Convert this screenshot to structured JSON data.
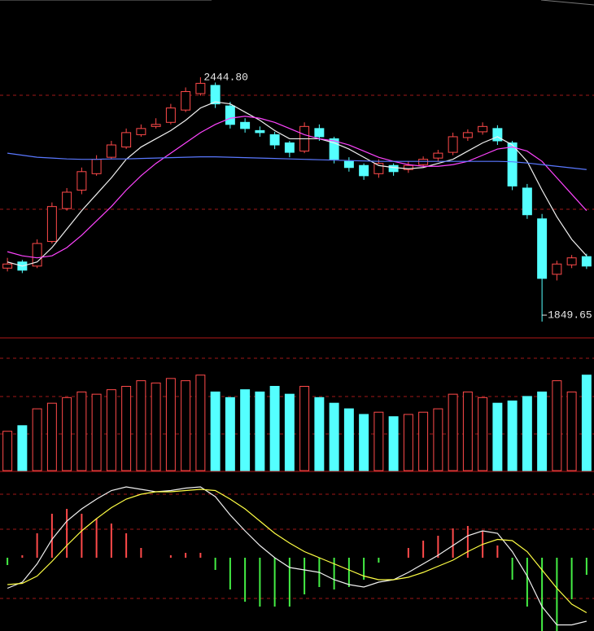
{
  "chart_data": [
    {
      "type": "candlestick",
      "ylim": [
        1820,
        2633
      ],
      "up_color": "#ff4a4a",
      "down_color": "#54ffff",
      "open": [
        1980,
        1995,
        1985,
        2045,
        2125,
        2170,
        2210,
        2250,
        2275,
        2305,
        2325,
        2335,
        2365,
        2405,
        2425,
        2375,
        2335,
        2315,
        2305,
        2285,
        2265,
        2320,
        2295,
        2240,
        2230,
        2210,
        2230,
        2220,
        2232,
        2248,
        2262,
        2298,
        2312,
        2320,
        2285,
        2175,
        2100,
        1965,
        1988,
        2008
      ],
      "high": [
        2005,
        2000,
        2050,
        2140,
        2175,
        2225,
        2255,
        2290,
        2320,
        2330,
        2345,
        2380,
        2420,
        2444.8,
        2432,
        2385,
        2345,
        2325,
        2312,
        2290,
        2335,
        2330,
        2300,
        2250,
        2235,
        2245,
        2235,
        2240,
        2252,
        2268,
        2310,
        2318,
        2335,
        2328,
        2290,
        2185,
        2112,
        1998,
        2012,
        2015
      ],
      "low": [
        1972,
        1968,
        1980,
        2040,
        2120,
        2160,
        2205,
        2245,
        2270,
        2300,
        2320,
        2330,
        2360,
        2400,
        2370,
        2320,
        2310,
        2300,
        2270,
        2250,
        2260,
        2290,
        2235,
        2215,
        2195,
        2200,
        2205,
        2212,
        2225,
        2240,
        2255,
        2290,
        2305,
        2280,
        2170,
        2100,
        1849.65,
        1950,
        1980,
        1978
      ],
      "close": [
        1990,
        1975,
        2040,
        2130,
        2165,
        2215,
        2245,
        2280,
        2310,
        2320,
        2330,
        2370,
        2410,
        2430,
        2380,
        2330,
        2320,
        2310,
        2280,
        2262,
        2325,
        2300,
        2245,
        2225,
        2205,
        2235,
        2215,
        2230,
        2245,
        2260,
        2300,
        2310,
        2325,
        2290,
        2180,
        2110,
        1955,
        1990,
        2005,
        1985
      ],
      "annotations": [
        "2444.80",
        "1849.65"
      ],
      "series": [
        {
          "color": "#f0f0f0",
          "values": [
            1995,
            1985,
            1995,
            2030,
            2075,
            2120,
            2160,
            2200,
            2245,
            2275,
            2295,
            2315,
            2340,
            2370,
            2385,
            2380,
            2360,
            2340,
            2315,
            2295,
            2295,
            2295,
            2285,
            2270,
            2250,
            2230,
            2225,
            2222,
            2225,
            2235,
            2245,
            2265,
            2285,
            2300,
            2280,
            2240,
            2170,
            2105,
            2050,
            2010
          ]
        },
        {
          "color": "#ff44ff",
          "values": [
            2020,
            2010,
            2005,
            2010,
            2030,
            2060,
            2095,
            2130,
            2170,
            2205,
            2235,
            2260,
            2285,
            2310,
            2330,
            2345,
            2350,
            2345,
            2335,
            2320,
            2305,
            2295,
            2290,
            2280,
            2265,
            2250,
            2240,
            2232,
            2228,
            2228,
            2232,
            2240,
            2255,
            2270,
            2275,
            2265,
            2240,
            2200,
            2160,
            2120
          ]
        },
        {
          "color": "#5a78ff",
          "values": [
            2260,
            2255,
            2250,
            2248,
            2246,
            2245,
            2245,
            2246,
            2246,
            2247,
            2248,
            2249,
            2250,
            2251,
            2251,
            2250,
            2249,
            2248,
            2247,
            2246,
            2245,
            2244,
            2243,
            2242,
            2241,
            2240,
            2240,
            2240,
            2240,
            2240,
            2240,
            2240,
            2240,
            2240,
            2239,
            2236,
            2232,
            2228,
            2224,
            2220
          ]
        }
      ]
    },
    {
      "type": "bar",
      "ylim": [
        0,
        100
      ],
      "values": [
        35,
        40,
        55,
        60,
        65,
        70,
        68,
        72,
        75,
        80,
        78,
        82,
        80,
        85,
        70,
        65,
        72,
        70,
        75,
        68,
        75,
        65,
        60,
        55,
        50,
        52,
        48,
        50,
        52,
        55,
        68,
        70,
        65,
        60,
        62,
        66,
        70,
        80,
        70,
        85
      ]
    },
    {
      "type": "macd",
      "ylim": [
        -60,
        60
      ],
      "up_color": "#ff4a4a",
      "down_color": "#44ee44",
      "histogram": [
        -6,
        2,
        20,
        36,
        40,
        36,
        32,
        28,
        20,
        8,
        0,
        2,
        4,
        4,
        -10,
        -26,
        -36,
        -40,
        -40,
        -40,
        -30,
        -24,
        -26,
        -24,
        -18,
        -4,
        0,
        8,
        14,
        18,
        24,
        26,
        22,
        10,
        -18,
        -40,
        -60,
        -60,
        -34,
        -14
      ],
      "series": [
        {
          "color": "#f0f0f0",
          "values": [
            -25,
            -20,
            -5,
            15,
            30,
            40,
            48,
            55,
            58,
            56,
            54,
            55,
            57,
            58,
            50,
            35,
            22,
            10,
            0,
            -8,
            -10,
            -12,
            -18,
            -22,
            -24,
            -20,
            -18,
            -12,
            -5,
            2,
            10,
            18,
            22,
            20,
            5,
            -15,
            -40,
            -55,
            -55,
            -52
          ]
        },
        {
          "color": "#ffff44",
          "values": [
            -22,
            -21,
            -15,
            -3,
            10,
            22,
            32,
            41,
            48,
            52,
            54,
            54,
            55,
            56,
            55,
            48,
            40,
            30,
            20,
            12,
            5,
            0,
            -5,
            -10,
            -15,
            -18,
            -18,
            -16,
            -12,
            -7,
            -2,
            5,
            11,
            15,
            14,
            5,
            -10,
            -25,
            -38,
            -45
          ]
        }
      ]
    }
  ]
}
